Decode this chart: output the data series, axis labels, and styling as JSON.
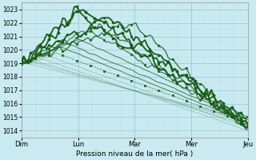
{
  "bg_color": "#c8eaf0",
  "grid_major_color": "#a0ccd8",
  "grid_minor_color": "#b8dce6",
  "line_color": "#1a5c1a",
  "title": "Pression niveau de la mer( hPa )",
  "ylim": [
    1013.5,
    1023.5
  ],
  "yticks": [
    1014,
    1015,
    1016,
    1017,
    1018,
    1019,
    1020,
    1021,
    1022,
    1023
  ],
  "day_labels": [
    "Dim",
    "Lun",
    "Mar",
    "Mer",
    "Jeu"
  ],
  "n_points": 100
}
